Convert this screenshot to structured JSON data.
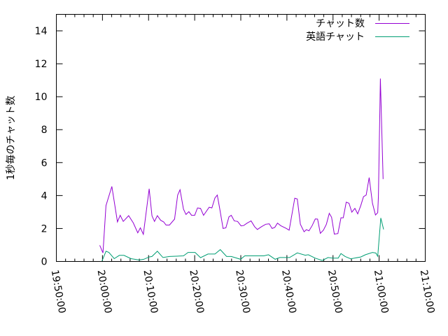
{
  "chart_data": {
    "type": "line",
    "title": "",
    "xlabel": "",
    "ylabel": "1秒毎のチャット数",
    "xlim": [
      "19:50:00",
      "21:10:00"
    ],
    "ylim": [
      0,
      15
    ],
    "x_ticks": [
      "19:50:00",
      "20:00:00",
      "20:10:00",
      "20:20:00",
      "20:30:00",
      "20:40:00",
      "20:50:00",
      "21:00:00",
      "21:10:00"
    ],
    "y_ticks": [
      0,
      2,
      4,
      6,
      8,
      10,
      12,
      14
    ],
    "grid": false,
    "legend_position": "top-right",
    "series": [
      {
        "name": "チャット数",
        "color": "#9400d3",
        "points": [
          [
            "19:59:25",
            0.98
          ],
          [
            "20:00:07",
            0.52
          ],
          [
            "20:00:46",
            3.39
          ],
          [
            "20:02:02",
            4.55
          ],
          [
            "20:03:15",
            2.4
          ],
          [
            "20:03:51",
            2.8
          ],
          [
            "20:04:31",
            2.43
          ],
          [
            "20:05:41",
            2.78
          ],
          [
            "20:06:41",
            2.34
          ],
          [
            "20:07:39",
            1.74
          ],
          [
            "20:08:13",
            2.04
          ],
          [
            "20:08:52",
            1.65
          ],
          [
            "20:10:08",
            4.41
          ],
          [
            "20:10:44",
            2.77
          ],
          [
            "20:11:17",
            2.43
          ],
          [
            "20:11:54",
            2.78
          ],
          [
            "20:12:37",
            2.5
          ],
          [
            "20:13:16",
            2.4
          ],
          [
            "20:13:47",
            2.21
          ],
          [
            "20:14:32",
            2.21
          ],
          [
            "20:15:38",
            2.57
          ],
          [
            "20:16:18",
            4.03
          ],
          [
            "20:16:49",
            4.35
          ],
          [
            "20:17:34",
            3.18
          ],
          [
            "20:18:07",
            2.85
          ],
          [
            "20:18:44",
            3.02
          ],
          [
            "20:19:20",
            2.8
          ],
          [
            "20:20:00",
            2.8
          ],
          [
            "20:20:37",
            3.25
          ],
          [
            "20:21:16",
            3.22
          ],
          [
            "20:21:55",
            2.8
          ],
          [
            "20:23:08",
            3.29
          ],
          [
            "20:23:44",
            3.25
          ],
          [
            "20:24:24",
            3.86
          ],
          [
            "20:24:54",
            4.03
          ],
          [
            "20:25:24",
            3.25
          ],
          [
            "20:26:10",
            2.0
          ],
          [
            "20:26:46",
            2.04
          ],
          [
            "20:27:26",
            2.71
          ],
          [
            "20:27:56",
            2.8
          ],
          [
            "20:28:35",
            2.46
          ],
          [
            "20:29:18",
            2.43
          ],
          [
            "20:30:04",
            2.16
          ],
          [
            "20:30:37",
            2.18
          ],
          [
            "20:31:23",
            2.33
          ],
          [
            "20:32:14",
            2.46
          ],
          [
            "20:32:59",
            2.11
          ],
          [
            "20:33:36",
            1.94
          ],
          [
            "20:34:30",
            2.11
          ],
          [
            "20:35:25",
            2.26
          ],
          [
            "20:36:11",
            2.28
          ],
          [
            "20:36:47",
            2.0
          ],
          [
            "20:37:23",
            2.07
          ],
          [
            "20:37:57",
            2.33
          ],
          [
            "20:38:40",
            2.17
          ],
          [
            "20:39:49",
            2.01
          ],
          [
            "20:40:29",
            1.9
          ],
          [
            "20:41:42",
            3.84
          ],
          [
            "20:42:15",
            3.79
          ],
          [
            "20:42:55",
            2.26
          ],
          [
            "20:43:43",
            1.8
          ],
          [
            "20:44:13",
            1.93
          ],
          [
            "20:44:47",
            1.86
          ],
          [
            "20:45:29",
            2.18
          ],
          [
            "20:46:09",
            2.58
          ],
          [
            "20:46:39",
            2.57
          ],
          [
            "20:47:15",
            1.71
          ],
          [
            "20:47:55",
            1.9
          ],
          [
            "20:48:34",
            2.26
          ],
          [
            "20:49:11",
            2.92
          ],
          [
            "20:49:41",
            2.68
          ],
          [
            "20:50:17",
            1.66
          ],
          [
            "20:51:03",
            1.69
          ],
          [
            "20:51:43",
            2.65
          ],
          [
            "20:52:13",
            2.65
          ],
          [
            "20:52:52",
            3.6
          ],
          [
            "20:53:28",
            3.53
          ],
          [
            "20:54:05",
            2.99
          ],
          [
            "20:54:45",
            3.22
          ],
          [
            "20:55:21",
            2.89
          ],
          [
            "20:56:01",
            3.39
          ],
          [
            "20:56:37",
            3.93
          ],
          [
            "20:57:11",
            4.03
          ],
          [
            "20:57:50",
            5.09
          ],
          [
            "20:58:33",
            3.53
          ],
          [
            "20:59:12",
            2.82
          ],
          [
            "20:59:42",
            2.96
          ],
          [
            "20:59:51",
            3.96
          ],
          [
            "21:00:16",
            11.1
          ],
          [
            "21:00:52",
            5.0
          ]
        ]
      },
      {
        "name": "英語チャット",
        "color": "#009e73",
        "points": [
          [
            "19:59:52",
            0
          ],
          [
            "20:00:46",
            0.62
          ],
          [
            "20:01:23",
            0.55
          ],
          [
            "20:02:33",
            0.17
          ],
          [
            "20:03:40",
            0.37
          ],
          [
            "20:04:40",
            0.37
          ],
          [
            "20:06:11",
            0.17
          ],
          [
            "20:07:57",
            0.09
          ],
          [
            "20:08:58",
            0.13
          ],
          [
            "20:10:08",
            0.27
          ],
          [
            "20:10:44",
            0.3
          ],
          [
            "20:11:54",
            0.62
          ],
          [
            "20:13:07",
            0.24
          ],
          [
            "20:14:32",
            0.3
          ],
          [
            "20:17:34",
            0.34
          ],
          [
            "20:18:34",
            0.55
          ],
          [
            "20:20:05",
            0.55
          ],
          [
            "20:21:16",
            0.23
          ],
          [
            "20:22:53",
            0.45
          ],
          [
            "20:24:24",
            0.45
          ],
          [
            "20:25:33",
            0.72
          ],
          [
            "20:26:55",
            0.3
          ],
          [
            "20:27:56",
            0.3
          ],
          [
            "20:29:57",
            0.13
          ],
          [
            "20:30:52",
            0.34
          ],
          [
            "20:32:23",
            0.34
          ],
          [
            "20:35:01",
            0.34
          ],
          [
            "20:36:01",
            0.41
          ],
          [
            "20:37:27",
            0.13
          ],
          [
            "20:38:27",
            0.24
          ],
          [
            "20:40:35",
            0.24
          ],
          [
            "20:42:15",
            0.52
          ],
          [
            "20:43:59",
            0.38
          ],
          [
            "20:44:38",
            0.41
          ],
          [
            "20:46:09",
            0.2
          ],
          [
            "20:47:40",
            0.06
          ],
          [
            "20:48:55",
            0.24
          ],
          [
            "20:49:56",
            0.2
          ],
          [
            "20:51:07",
            0.2
          ],
          [
            "20:51:43",
            0.48
          ],
          [
            "20:52:38",
            0.3
          ],
          [
            "20:53:50",
            0.16
          ],
          [
            "20:56:01",
            0.27
          ],
          [
            "20:57:02",
            0.41
          ],
          [
            "20:58:33",
            0.55
          ],
          [
            "20:59:18",
            0.51
          ],
          [
            "20:59:42",
            0.31
          ],
          [
            "21:00:22",
            2.64
          ],
          [
            "21:00:58",
            1.94
          ]
        ]
      }
    ]
  }
}
